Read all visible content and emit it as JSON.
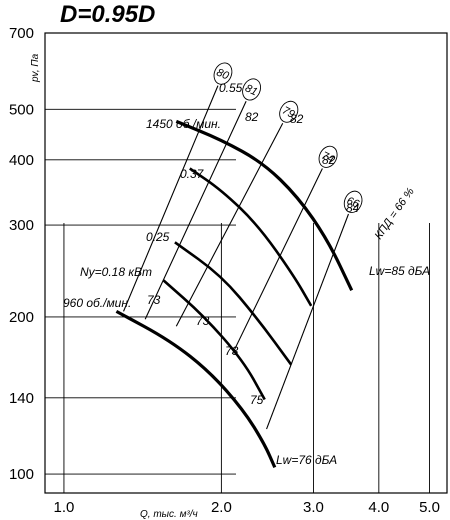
{
  "chart_data": {
    "type": "line",
    "title": "D=0.95D",
    "xlabel": "Q, тыс. м³/ч",
    "ylabel": "pv, Па",
    "x_scale": "log",
    "y_scale": "log",
    "xlim": [
      0.92,
      5.4
    ],
    "ylim": [
      92,
      700
    ],
    "x_ticks": [
      "1.0",
      "2.0",
      "3.0",
      "4.0",
      "5.0"
    ],
    "y_ticks": [
      "700",
      "500",
      "400",
      "300",
      "200",
      "140",
      "100"
    ],
    "speed_curves": [
      {
        "label": "1450 об./мин.",
        "x": [
          1.64,
          2.0,
          2.4,
          2.8,
          3.2,
          3.55
        ],
        "y": [
          474,
          437,
          395,
          340,
          280,
          225
        ]
      },
      {
        "label": "",
        "x": [
          1.74,
          2.0,
          2.35,
          2.75,
          2.97
        ],
        "y": [
          385,
          350,
          300,
          240,
          210
        ]
      },
      {
        "label": "",
        "x": [
          1.63,
          2.0,
          2.35,
          2.72
        ],
        "y": [
          278,
          240,
          198,
          162
        ]
      },
      {
        "label": "",
        "x": [
          1.55,
          1.85,
          2.2,
          2.42
        ],
        "y": [
          235,
          201,
          165,
          139
        ]
      },
      {
        "label": "960 об./мин.",
        "x": [
          1.26,
          1.6,
          1.9,
          2.2,
          2.42,
          2.53
        ],
        "y": [
          205,
          180,
          157,
          133,
          114,
          103
        ]
      }
    ],
    "efficiency_lines": [
      {
        "label": "80",
        "x": [
          1.97,
          1.3
        ],
        "y": [
          555,
          205
        ]
      },
      {
        "label": "81",
        "x": [
          2.23,
          1.43
        ],
        "y": [
          518,
          198
        ]
      },
      {
        "label": "79",
        "x": [
          2.62,
          1.64
        ],
        "y": [
          470,
          192
        ]
      },
      {
        "label": "74",
        "x": [
          3.12,
          2.1
        ],
        "y": [
          385,
          170
        ]
      },
      {
        "label": "66",
        "x": [
          3.5,
          2.44
        ],
        "y": [
          315,
          122
        ]
      }
    ],
    "efficiency_values": [
      "82",
      "82",
      "82",
      "84",
      "73",
      "73",
      "73",
      "75"
    ],
    "power_labels": [
      "0.55",
      "0.37",
      "0.25",
      "Ny=0.18 кВт"
    ],
    "efficiency_legend": "КПД = 66 %",
    "noise_labels": [
      "Lw=85 дБА",
      "Lw=76 дБА"
    ]
  }
}
